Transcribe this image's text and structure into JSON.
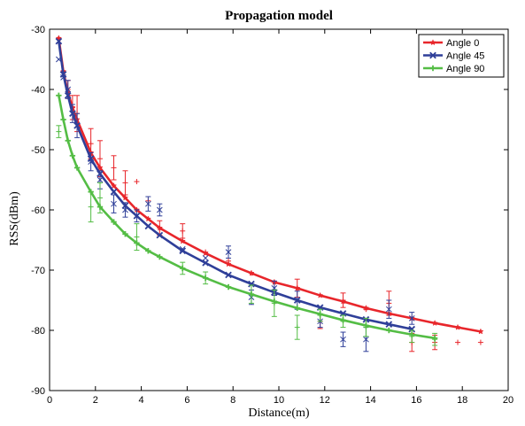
{
  "chart_data": {
    "type": "line",
    "title": "Propagation model",
    "xlabel": "Distance(m)",
    "ylabel": "RSS(dBm)",
    "xlim": [
      0,
      20
    ],
    "ylim": [
      -90,
      -30
    ],
    "xticks": [
      0,
      2,
      4,
      6,
      8,
      10,
      12,
      14,
      16,
      18,
      20
    ],
    "yticks": [
      -90,
      -80,
      -70,
      -60,
      -50,
      -40,
      -30
    ],
    "legend_position": "top-right",
    "grid": false,
    "series": [
      {
        "name": "Angle 0",
        "color": "#e8262b",
        "marker": "star",
        "model_x": [
          0.4,
          0.6,
          0.8,
          1.0,
          1.2,
          1.8,
          2.2,
          2.8,
          3.3,
          3.8,
          4.3,
          4.8,
          5.8,
          6.8,
          7.8,
          8.8,
          9.8,
          10.8,
          11.8,
          12.8,
          13.8,
          14.8,
          15.8,
          16.8,
          17.8,
          18.8
        ],
        "model_y": [
          -31.5,
          -37,
          -40.5,
          -43,
          -45,
          -50.5,
          -53,
          -56,
          -58,
          -60,
          -61.5,
          -63,
          -65.2,
          -67.2,
          -69,
          -70.5,
          -72,
          -73,
          -74.2,
          -75.2,
          -76.3,
          -77.2,
          -78,
          -78.8,
          -79.5,
          -80.2
        ],
        "measured_x": [
          0.4,
          0.6,
          0.8,
          1.0,
          1.2,
          1.8,
          2.2,
          2.8,
          3.3,
          3.8,
          4.3,
          4.8,
          5.8,
          6.8,
          7.8,
          8.8,
          9.8,
          10.8,
          11.8,
          12.8,
          13.8,
          14.8,
          15.8,
          16.8,
          17.8,
          18.8
        ],
        "measured_y": [
          -31.5,
          -37,
          -40,
          -43,
          -44,
          -49,
          -51.5,
          -53,
          -55.5,
          -55.3,
          -58.5,
          -63,
          -63.5,
          -67,
          -68.5,
          -70.5,
          -72,
          -73,
          -78.5,
          -75,
          -76.5,
          -75.5,
          -82,
          -82,
          -82,
          -82
        ],
        "error": [
          0,
          0,
          1.5,
          2,
          3,
          2.5,
          3,
          2,
          2,
          0,
          0,
          1.2,
          1.2,
          0,
          0,
          0,
          0,
          1.5,
          1.2,
          1.2,
          0,
          2,
          1.5,
          1.2,
          0,
          0
        ]
      },
      {
        "name": "Angle 45",
        "color": "#2f3f99",
        "marker": "x",
        "model_x": [
          0.4,
          0.6,
          0.8,
          1.0,
          1.2,
          1.8,
          2.2,
          2.8,
          3.3,
          3.8,
          4.3,
          4.8,
          5.8,
          6.8,
          7.8,
          8.8,
          9.8,
          10.8,
          11.8,
          12.8,
          13.8,
          14.8,
          15.8
        ],
        "model_y": [
          -32,
          -37.5,
          -41,
          -44,
          -46,
          -51.5,
          -54,
          -57,
          -59.3,
          -61,
          -62.7,
          -64.2,
          -66.8,
          -68.8,
          -70.8,
          -72.3,
          -73.7,
          -75,
          -76.2,
          -77.2,
          -78.2,
          -79,
          -79.8
        ],
        "measured_x": [
          0.4,
          0.6,
          0.8,
          1.0,
          1.2,
          1.8,
          2.2,
          2.8,
          3.3,
          3.8,
          4.3,
          4.8,
          5.8,
          6.8,
          7.8,
          8.8,
          9.8,
          10.8,
          11.8,
          12.8,
          13.8,
          14.8,
          15.8
        ],
        "measured_y": [
          -35,
          -38,
          -40,
          -44,
          -46,
          -52,
          -55,
          -59,
          -60,
          -61,
          -59,
          -60,
          -66.5,
          -68,
          -67,
          -74.5,
          -73,
          -75,
          -78.5,
          -81.5,
          -81.5,
          -76.5,
          -78
        ],
        "error": [
          0,
          0,
          1.5,
          1.5,
          2,
          1.5,
          1.5,
          1.5,
          1.2,
          1,
          1.2,
          1,
          0,
          0,
          1,
          1.2,
          1.2,
          1.5,
          1,
          1.2,
          2,
          1.5,
          1
        ]
      },
      {
        "name": "Angle 90",
        "color": "#54bd45",
        "marker": "plus",
        "model_x": [
          0.4,
          0.6,
          0.8,
          1.0,
          1.2,
          1.8,
          2.2,
          2.8,
          3.3,
          3.8,
          4.3,
          4.8,
          5.8,
          6.8,
          7.8,
          8.8,
          9.8,
          10.8,
          11.8,
          12.8,
          13.8,
          14.8,
          15.8,
          16.8
        ],
        "model_y": [
          -41,
          -45,
          -48.5,
          -51,
          -53,
          -57,
          -59.5,
          -62,
          -64,
          -65.5,
          -66.8,
          -67.8,
          -69.7,
          -71.3,
          -72.8,
          -74,
          -75.2,
          -76.3,
          -77.3,
          -78.3,
          -79.2,
          -80,
          -80.7,
          -81.3
        ],
        "measured_x": [
          0.4,
          0.6,
          0.8,
          1.0,
          1.2,
          1.8,
          2.2,
          2.8,
          3.3,
          3.8,
          4.3,
          4.8,
          5.8,
          6.8,
          7.8,
          8.8,
          9.8,
          10.8,
          11.8,
          12.8,
          13.8,
          14.8,
          15.8,
          16.8
        ],
        "measured_y": [
          -47,
          -45,
          -48.5,
          -51,
          -53,
          -59.5,
          -58,
          -62,
          -64,
          -64.5,
          -66.8,
          -67.8,
          -69.7,
          -71.3,
          -72.8,
          -74,
          -75.5,
          -79.5,
          -77.5,
          -78.5,
          -79.5,
          -80,
          -81,
          -81.5
        ],
        "error": [
          1,
          0,
          0,
          0,
          0,
          2.5,
          2.5,
          0,
          0,
          2.2,
          0,
          0,
          1,
          1,
          0,
          1.5,
          2.2,
          2,
          1,
          1,
          1.5,
          0,
          1,
          1
        ]
      }
    ]
  }
}
